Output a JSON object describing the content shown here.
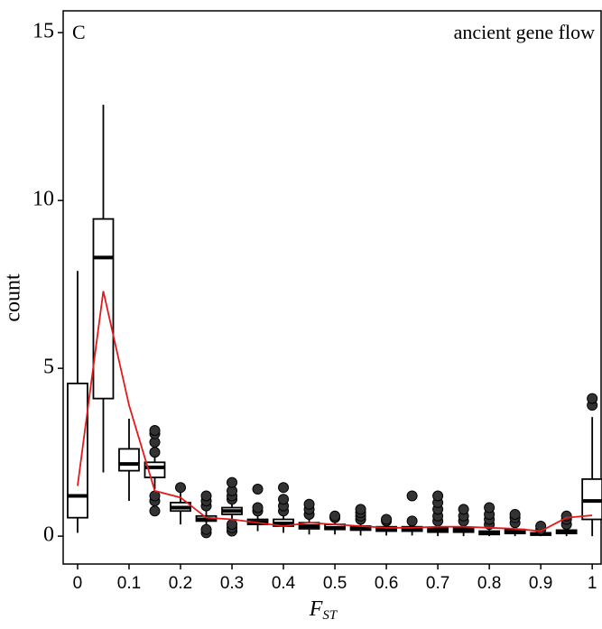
{
  "chart_data": {
    "type": "box",
    "title": "C",
    "annotation": "ancient gene flow",
    "x_label": "F",
    "x_label_subscript": "ST",
    "y_label": "count",
    "xlim": [
      -0.028,
      1.019
    ],
    "ylim": [
      -0.83,
      15.65
    ],
    "xticks": [
      0,
      0.1,
      0.2,
      0.3,
      0.4,
      0.5,
      0.6,
      0.7,
      0.8,
      0.9,
      1
    ],
    "yticks": [
      0,
      5,
      10,
      15
    ],
    "x": [
      0,
      0.05,
      0.1,
      0.15,
      0.2,
      0.25,
      0.3,
      0.35,
      0.4,
      0.45,
      0.5,
      0.55,
      0.6,
      0.65,
      0.7,
      0.75,
      0.8,
      0.85,
      0.9,
      0.95,
      1
    ],
    "box_color": "#000000",
    "outlier_color": "#333333",
    "boxes": [
      {
        "low": 0.1,
        "q1": 0.55,
        "median": 1.2,
        "q3": 4.55,
        "high": 7.9,
        "outliers": []
      },
      {
        "low": 1.9,
        "q1": 4.1,
        "median": 8.3,
        "q3": 9.45,
        "high": 12.85,
        "outliers": []
      },
      {
        "low": 1.05,
        "q1": 1.95,
        "median": 2.15,
        "q3": 2.6,
        "high": 3.5,
        "outliers": []
      },
      {
        "low": 1.4,
        "q1": 1.75,
        "median": 2.05,
        "q3": 2.2,
        "high": 2.4,
        "outliers": [
          0.75,
          1.05,
          1.2,
          2.5,
          2.8,
          3.05,
          3.15
        ]
      },
      {
        "low": 0.35,
        "q1": 0.75,
        "median": 0.85,
        "q3": 1.0,
        "high": 1.35,
        "outliers": [
          1.45
        ]
      },
      {
        "low": 0.3,
        "q1": 0.45,
        "median": 0.5,
        "q3": 0.6,
        "high": 0.75,
        "outliers": [
          0.1,
          0.2,
          0.9,
          1.05,
          1.2
        ]
      },
      {
        "low": 0.45,
        "q1": 0.65,
        "median": 0.75,
        "q3": 0.85,
        "high": 1.0,
        "outliers": [
          0.15,
          0.25,
          0.35,
          1.1,
          1.2,
          1.35,
          1.6
        ]
      },
      {
        "low": 0.15,
        "q1": 0.35,
        "median": 0.42,
        "q3": 0.5,
        "high": 0.7,
        "outliers": [
          0.75,
          0.85,
          1.4
        ]
      },
      {
        "low": 0.1,
        "q1": 0.3,
        "median": 0.38,
        "q3": 0.5,
        "high": 0.65,
        "outliers": [
          0.75,
          0.9,
          1.1,
          1.45
        ]
      },
      {
        "low": 0.05,
        "q1": 0.22,
        "median": 0.3,
        "q3": 0.4,
        "high": 0.6,
        "outliers": [
          0.65,
          0.8,
          0.95
        ]
      },
      {
        "low": 0.05,
        "q1": 0.2,
        "median": 0.25,
        "q3": 0.35,
        "high": 0.5,
        "outliers": [
          0.55,
          0.6
        ]
      },
      {
        "low": 0.02,
        "q1": 0.18,
        "median": 0.23,
        "q3": 0.3,
        "high": 0.45,
        "outliers": [
          0.5,
          0.6,
          0.7,
          0.8
        ]
      },
      {
        "low": 0.02,
        "q1": 0.15,
        "median": 0.2,
        "q3": 0.28,
        "high": 0.4,
        "outliers": [
          0.45,
          0.5
        ]
      },
      {
        "low": 0.02,
        "q1": 0.15,
        "median": 0.2,
        "q3": 0.28,
        "high": 0.4,
        "outliers": [
          0.45,
          1.2
        ]
      },
      {
        "low": 0.0,
        "q1": 0.12,
        "median": 0.18,
        "q3": 0.25,
        "high": 0.4,
        "outliers": [
          0.45,
          0.6,
          0.8,
          1.0,
          1.2
        ]
      },
      {
        "low": 0.0,
        "q1": 0.12,
        "median": 0.18,
        "q3": 0.25,
        "high": 0.4,
        "outliers": [
          0.45,
          0.6,
          0.8
        ]
      },
      {
        "low": 0.0,
        "q1": 0.05,
        "median": 0.1,
        "q3": 0.15,
        "high": 0.3,
        "outliers": [
          0.35,
          0.5,
          0.65,
          0.85
        ]
      },
      {
        "low": 0.0,
        "q1": 0.08,
        "median": 0.12,
        "q3": 0.2,
        "high": 0.3,
        "outliers": [
          0.4,
          0.55,
          0.65
        ]
      },
      {
        "low": 0.0,
        "q1": 0.03,
        "median": 0.07,
        "q3": 0.1,
        "high": 0.15,
        "outliers": [
          0.2,
          0.3
        ]
      },
      {
        "low": 0.0,
        "q1": 0.08,
        "median": 0.12,
        "q3": 0.18,
        "high": 0.3,
        "outliers": [
          0.35,
          0.5,
          0.6
        ]
      },
      {
        "low": 0.0,
        "q1": 0.5,
        "median": 1.05,
        "q3": 1.7,
        "high": 3.55,
        "outliers": [
          3.9,
          4.1
        ]
      }
    ],
    "mean_line": {
      "color": "#e31a1c",
      "values": [
        1.5,
        7.3,
        3.9,
        1.35,
        1.15,
        0.55,
        0.5,
        0.4,
        0.3,
        0.4,
        0.35,
        0.3,
        0.25,
        0.25,
        0.28,
        0.28,
        0.25,
        0.22,
        0.15,
        0.55,
        0.62
      ]
    }
  }
}
